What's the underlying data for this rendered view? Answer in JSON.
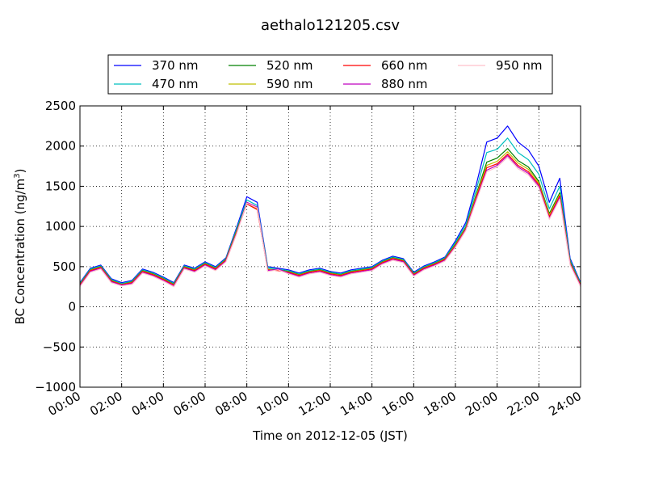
{
  "chart_data": {
    "type": "line",
    "title": "aethalo121205.csv",
    "xlabel": "Time on 2012-12-05 (JST)",
    "ylabel": "BC Concentration (ng/m³)",
    "ylabel_main": "BC Concentration (ng/m",
    "ylabel_sup": "3",
    "ylabel_end": ")",
    "xlim": [
      "00:00",
      "24:00"
    ],
    "ylim": [
      -1000,
      2500
    ],
    "grid": true,
    "legend_position": "top-center",
    "x_ticks": [
      "00:00",
      "02:00",
      "04:00",
      "06:00",
      "08:00",
      "10:00",
      "12:00",
      "14:00",
      "16:00",
      "18:00",
      "20:00",
      "22:00",
      "24:00"
    ],
    "y_ticks": [
      2500,
      2000,
      1500,
      1000,
      500,
      0,
      -500,
      -1000
    ],
    "x": [
      "00:00",
      "00:30",
      "01:00",
      "01:30",
      "02:00",
      "02:30",
      "03:00",
      "03:30",
      "04:00",
      "04:30",
      "05:00",
      "05:30",
      "06:00",
      "06:30",
      "07:00",
      "07:30",
      "08:00",
      "08:30",
      "09:00",
      "09:30",
      "10:00",
      "10:30",
      "11:00",
      "11:30",
      "12:00",
      "12:30",
      "13:00",
      "13:30",
      "14:00",
      "14:30",
      "15:00",
      "15:30",
      "16:00",
      "16:30",
      "17:00",
      "17:30",
      "18:00",
      "18:30",
      "19:00",
      "19:30",
      "20:00",
      "20:30",
      "21:00",
      "21:30",
      "22:00",
      "22:30",
      "23:00",
      "23:30",
      "24:00"
    ],
    "series": [
      {
        "name": "370 nm",
        "color": "#0000ff",
        "values": [
          300,
          480,
          520,
          350,
          300,
          330,
          470,
          430,
          370,
          300,
          520,
          480,
          560,
          500,
          610,
          980,
          1370,
          1300,
          500,
          480,
          460,
          420,
          460,
          480,
          440,
          420,
          460,
          480,
          500,
          580,
          630,
          600,
          430,
          510,
          560,
          620,
          820,
          1050,
          1520,
          2050,
          2100,
          2250,
          2050,
          1950,
          1750,
          1300,
          1600,
          600,
          300
        ]
      },
      {
        "name": "470 nm",
        "color": "#00bfbf",
        "values": [
          290,
          470,
          510,
          340,
          290,
          320,
          460,
          420,
          360,
          290,
          510,
          470,
          550,
          490,
          600,
          960,
          1330,
          1260,
          490,
          470,
          450,
          410,
          450,
          470,
          430,
          410,
          450,
          470,
          490,
          570,
          620,
          590,
          420,
          500,
          550,
          610,
          800,
          1020,
          1460,
          1920,
          1960,
          2100,
          1920,
          1830,
          1650,
          1220,
          1500,
          580,
          290
        ]
      },
      {
        "name": "520 nm",
        "color": "#008000",
        "values": [
          280,
          460,
          500,
          330,
          280,
          310,
          450,
          410,
          350,
          280,
          500,
          460,
          540,
          480,
          590,
          940,
          1300,
          1230,
          470,
          460,
          440,
          400,
          440,
          460,
          420,
          400,
          440,
          460,
          480,
          560,
          610,
          580,
          410,
          490,
          540,
          600,
          780,
          990,
          1400,
          1800,
          1850,
          1970,
          1820,
          1740,
          1560,
          1160,
          1420,
          560,
          280
        ]
      },
      {
        "name": "590 nm",
        "color": "#bfbf00",
        "values": [
          275,
          455,
          495,
          325,
          278,
          305,
          445,
          405,
          345,
          275,
          495,
          455,
          535,
          475,
          585,
          930,
          1290,
          1220,
          465,
          455,
          435,
          395,
          435,
          455,
          415,
          395,
          435,
          455,
          475,
          555,
          605,
          575,
          405,
          485,
          535,
          595,
          770,
          980,
          1380,
          1760,
          1810,
          1930,
          1790,
          1710,
          1540,
          1140,
          1400,
          550,
          275
        ]
      },
      {
        "name": "660 nm",
        "color": "#ff0000",
        "values": [
          270,
          450,
          490,
          320,
          275,
          300,
          440,
          400,
          340,
          270,
          490,
          450,
          530,
          470,
          580,
          920,
          1280,
          1210,
          460,
          450,
          430,
          390,
          430,
          450,
          410,
          390,
          430,
          450,
          470,
          550,
          600,
          570,
          400,
          480,
          530,
          590,
          760,
          970,
          1360,
          1730,
          1780,
          1900,
          1760,
          1680,
          1520,
          1120,
          1380,
          540,
          270
        ]
      },
      {
        "name": "880 nm",
        "color": "#bf00bf",
        "values": [
          260,
          440,
          480,
          310,
          270,
          290,
          430,
          390,
          330,
          260,
          480,
          440,
          520,
          460,
          570,
          910,
          1300,
          1240,
          450,
          470,
          420,
          380,
          420,
          440,
          400,
          380,
          420,
          440,
          460,
          540,
          590,
          560,
          390,
          470,
          520,
          580,
          750,
          960,
          1340,
          1700,
          1760,
          1880,
          1740,
          1660,
          1500,
          1100,
          1360,
          530,
          260
        ]
      },
      {
        "name": "950 nm",
        "color": "#ffc0cb",
        "values": [
          250,
          430,
          470,
          300,
          260,
          280,
          420,
          380,
          320,
          250,
          470,
          430,
          510,
          450,
          560,
          900,
          1290,
          1230,
          440,
          460,
          410,
          370,
          410,
          430,
          390,
          370,
          410,
          430,
          450,
          530,
          580,
          550,
          380,
          460,
          510,
          570,
          740,
          950,
          1320,
          1680,
          1740,
          1860,
          1720,
          1640,
          1480,
          1090,
          1340,
          520,
          250
        ]
      }
    ]
  }
}
